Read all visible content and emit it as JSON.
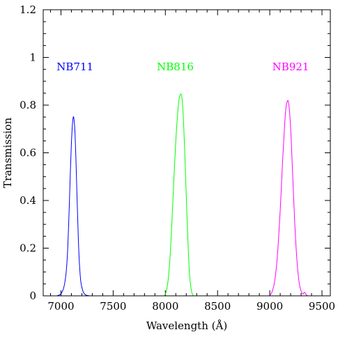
{
  "chart_data": {
    "type": "line",
    "title": "",
    "xlabel": "Wavelength (Å)",
    "ylabel": "Transmission",
    "xlim": [
      6830,
      9580
    ],
    "ylim": [
      0,
      1.2
    ],
    "x_ticks": [
      7000,
      7500,
      8000,
      8500,
      9000,
      9500
    ],
    "y_ticks": [
      0,
      0.2,
      0.4,
      0.6,
      0.8,
      1,
      1.2
    ],
    "x_tick_labels": [
      "7000",
      "7500",
      "8000",
      "8500",
      "9000",
      "9500"
    ],
    "y_tick_labels": [
      "0",
      "0.2",
      "0.4",
      "0.6",
      "0.8",
      "1",
      "1.2"
    ],
    "grid": false,
    "legend": "labels above each curve",
    "series": [
      {
        "name": "NB711",
        "color": "#0000ff",
        "label_at": [
          7135,
          0.96
        ],
        "x": [
          6960,
          6990,
          7010,
          7030,
          7050,
          7065,
          7080,
          7090,
          7100,
          7110,
          7118,
          7125,
          7135,
          7145,
          7155,
          7165,
          7175,
          7190,
          7210,
          7230,
          7260,
          7290
        ],
        "y": [
          0,
          0.005,
          0.015,
          0.04,
          0.1,
          0.2,
          0.38,
          0.52,
          0.64,
          0.72,
          0.75,
          0.74,
          0.68,
          0.55,
          0.4,
          0.26,
          0.15,
          0.06,
          0.02,
          0.006,
          0.001,
          0
        ]
      },
      {
        "name": "NB816",
        "color": "#00ff00",
        "label_at": [
          8095,
          0.96
        ],
        "x": [
          7990,
          8010,
          8030,
          8050,
          8070,
          8085,
          8100,
          8115,
          8130,
          8145,
          8155,
          8165,
          8175,
          8190,
          8200,
          8210,
          8220,
          8230,
          8240,
          8255,
          8270
        ],
        "y": [
          0,
          0.02,
          0.08,
          0.2,
          0.38,
          0.52,
          0.65,
          0.75,
          0.82,
          0.845,
          0.84,
          0.8,
          0.72,
          0.55,
          0.42,
          0.3,
          0.19,
          0.1,
          0.05,
          0.012,
          0
        ]
      },
      {
        "name": "NB921",
        "color": "#ff00ff",
        "label_at": [
          9200,
          0.96
        ],
        "x": [
          9000,
          9025,
          9050,
          9075,
          9100,
          9120,
          9140,
          9155,
          9170,
          9180,
          9190,
          9205,
          9220,
          9240,
          9260,
          9280,
          9300,
          9320,
          9330,
          9340,
          9350,
          9365
        ],
        "y": [
          0,
          0.02,
          0.07,
          0.18,
          0.36,
          0.54,
          0.7,
          0.79,
          0.818,
          0.81,
          0.77,
          0.66,
          0.5,
          0.3,
          0.15,
          0.06,
          0.02,
          0.008,
          0.015,
          0.012,
          0.004,
          0
        ]
      }
    ]
  }
}
